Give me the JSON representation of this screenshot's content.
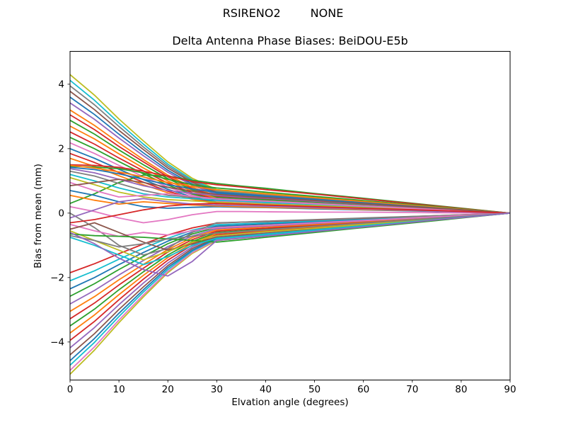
{
  "chart_data": {
    "type": "line",
    "suptitle_left": "RSIRENO2",
    "suptitle_right": "NONE",
    "title": "Delta Antenna Phase Biases: BeiDOU-E5b",
    "xlabel": "Elvation angle (degrees)",
    "ylabel": "Bias from mean (mm)",
    "xlim": [
      0,
      90
    ],
    "ylim": [
      -5.18,
      5.02
    ],
    "xticks": [
      {
        "v": 0,
        "label": "0"
      },
      {
        "v": 10,
        "label": "10"
      },
      {
        "v": 20,
        "label": "20"
      },
      {
        "v": 30,
        "label": "30"
      },
      {
        "v": 40,
        "label": "40"
      },
      {
        "v": 50,
        "label": "50"
      },
      {
        "v": 60,
        "label": "60"
      },
      {
        "v": 70,
        "label": "70"
      },
      {
        "v": 80,
        "label": "80"
      },
      {
        "v": 90,
        "label": "90"
      }
    ],
    "yticks": [
      {
        "v": 4,
        "label": "4"
      },
      {
        "v": 2,
        "label": "2"
      },
      {
        "v": 0,
        "label": "0"
      },
      {
        "v": -2,
        "label": "−2"
      },
      {
        "v": -4,
        "label": "−4"
      }
    ],
    "grid": false,
    "legend": "none",
    "line_width": 1.8,
    "x": [
      0,
      5,
      10,
      15,
      20,
      25,
      30,
      35,
      40,
      50,
      60,
      75,
      90
    ],
    "series": [
      {
        "color": "#bcbd22",
        "values": [
          4.3,
          3.66,
          2.92,
          2.24,
          1.59,
          1.08,
          0.73,
          0.67,
          0.61,
          0.49,
          0.37,
          0.18,
          0
        ]
      },
      {
        "color": "#17becf",
        "values": [
          4.12,
          3.5,
          2.8,
          2.14,
          1.52,
          1.03,
          0.7,
          0.64,
          0.58,
          0.47,
          0.35,
          0.18,
          0
        ]
      },
      {
        "color": "#7f7f7f",
        "values": [
          3.95,
          3.36,
          2.69,
          2.05,
          1.46,
          0.99,
          0.67,
          0.61,
          0.56,
          0.45,
          0.34,
          0.17,
          0
        ]
      },
      {
        "color": "#8c564b",
        "values": [
          3.78,
          3.21,
          2.57,
          1.97,
          1.4,
          0.95,
          0.64,
          0.59,
          0.53,
          0.43,
          0.32,
          0.16,
          0
        ]
      },
      {
        "color": "#1f77b4",
        "values": [
          3.6,
          3.06,
          2.45,
          1.87,
          1.33,
          0.9,
          0.61,
          0.56,
          0.51,
          0.41,
          0.31,
          0.15,
          0
        ]
      },
      {
        "color": "#9467bd",
        "values": [
          3.42,
          2.91,
          2.33,
          1.78,
          1.27,
          0.86,
          0.58,
          0.53,
          0.48,
          0.39,
          0.29,
          0.15,
          0
        ]
      },
      {
        "color": "#ff7f0e",
        "values": [
          3.2,
          2.72,
          2.18,
          1.66,
          1.18,
          0.8,
          0.54,
          0.5,
          0.45,
          0.36,
          0.27,
          0.14,
          0
        ]
      },
      {
        "color": "#d62728",
        "values": [
          3.05,
          2.59,
          2.07,
          1.59,
          1.13,
          0.76,
          0.52,
          0.48,
          0.43,
          0.35,
          0.26,
          0.13,
          0
        ]
      },
      {
        "color": "#2ca02c",
        "values": [
          2.88,
          2.45,
          1.96,
          1.5,
          1.07,
          0.72,
          0.49,
          0.45,
          0.41,
          0.33,
          0.25,
          0.12,
          0
        ]
      },
      {
        "color": "#ff7f0e",
        "values": [
          2.7,
          2.3,
          1.84,
          1.4,
          1.0,
          0.68,
          0.46,
          0.42,
          0.38,
          0.31,
          0.23,
          0.12,
          0
        ]
      },
      {
        "color": "#d62728",
        "values": [
          2.52,
          2.14,
          1.71,
          1.31,
          0.93,
          0.63,
          0.43,
          0.39,
          0.36,
          0.29,
          0.22,
          0.11,
          0
        ]
      },
      {
        "color": "#2ca02c",
        "values": [
          2.35,
          2.0,
          1.6,
          1.22,
          0.87,
          0.59,
          0.4,
          0.37,
          0.33,
          0.27,
          0.2,
          0.1,
          0
        ]
      },
      {
        "color": "#e377c2",
        "values": [
          2.18,
          1.85,
          1.48,
          1.13,
          0.81,
          0.55,
          0.37,
          0.34,
          0.31,
          0.25,
          0.19,
          0.09,
          0
        ]
      },
      {
        "color": "#1f77b4",
        "values": [
          2.0,
          1.7,
          1.36,
          1.04,
          0.74,
          0.5,
          0.34,
          0.31,
          0.28,
          0.23,
          0.17,
          0.09,
          0
        ]
      },
      {
        "color": "#d62728",
        "values": [
          1.85,
          1.57,
          1.26,
          0.96,
          0.68,
          0.46,
          0.31,
          0.28,
          0.26,
          0.21,
          0.16,
          0.08,
          0
        ]
      },
      {
        "color": "#ff7f0e",
        "values": [
          1.7,
          1.45,
          1.16,
          0.88,
          0.63,
          0.43,
          0.29,
          0.27,
          0.24,
          0.19,
          0.15,
          0.07,
          0
        ]
      },
      {
        "color": "#bcbd22",
        "values": [
          -5.0,
          -4.25,
          -3.4,
          -2.6,
          -1.85,
          -1.25,
          -0.85,
          -0.78,
          -0.71,
          -0.57,
          -0.43,
          -0.21,
          0
        ]
      },
      {
        "color": "#e377c2",
        "values": [
          -4.88,
          -4.15,
          -3.32,
          -2.54,
          -1.81,
          -1.22,
          -0.83,
          -0.76,
          -0.69,
          -0.55,
          -0.42,
          -0.21,
          0
        ]
      },
      {
        "color": "#17becf",
        "values": [
          -4.72,
          -4.01,
          -3.21,
          -2.45,
          -1.75,
          -1.18,
          -0.8,
          -0.73,
          -0.67,
          -0.53,
          -0.4,
          -0.2,
          0
        ]
      },
      {
        "color": "#1f77b4",
        "values": [
          -4.58,
          -3.89,
          -3.11,
          -2.38,
          -1.69,
          -1.15,
          -0.78,
          -0.72,
          -0.65,
          -0.52,
          -0.39,
          -0.2,
          0
        ]
      },
      {
        "color": "#8c564b",
        "values": [
          -4.4,
          -3.74,
          -2.99,
          -2.29,
          -1.63,
          -1.1,
          -0.75,
          -0.69,
          -0.63,
          -0.5,
          -0.38,
          -0.19,
          0
        ]
      },
      {
        "color": "#9467bd",
        "values": [
          -4.18,
          -3.55,
          -2.84,
          -2.17,
          -1.55,
          -1.05,
          -0.71,
          -0.65,
          -0.59,
          -0.47,
          -0.36,
          -0.18,
          0
        ]
      },
      {
        "color": "#d62728",
        "values": [
          -3.95,
          -3.36,
          -2.69,
          -2.05,
          -1.46,
          -0.99,
          -0.67,
          -0.61,
          -0.56,
          -0.45,
          -0.34,
          -0.17,
          0
        ]
      },
      {
        "color": "#ff7f0e",
        "values": [
          -3.72,
          -3.16,
          -2.53,
          -1.93,
          -1.38,
          -0.93,
          -0.63,
          -0.58,
          -0.53,
          -0.42,
          -0.32,
          -0.16,
          0
        ]
      },
      {
        "color": "#2ca02c",
        "values": [
          -3.5,
          -2.98,
          -2.38,
          -1.82,
          -1.3,
          -0.88,
          -0.6,
          -0.55,
          -0.5,
          -0.4,
          -0.3,
          -0.15,
          0
        ]
      },
      {
        "color": "#d62728",
        "values": [
          -3.28,
          -2.79,
          -2.23,
          -1.71,
          -1.21,
          -0.82,
          -0.56,
          -0.51,
          -0.47,
          -0.37,
          -0.28,
          -0.14,
          0
        ]
      },
      {
        "color": "#ff7f0e",
        "values": [
          -3.05,
          -2.59,
          -2.07,
          -1.59,
          -1.13,
          -0.76,
          -0.52,
          -0.48,
          -0.43,
          -0.35,
          -0.26,
          -0.13,
          0
        ]
      },
      {
        "color": "#9467bd",
        "values": [
          -2.82,
          -2.4,
          -1.92,
          -1.47,
          -1.04,
          -0.71,
          -0.48,
          -0.44,
          -0.4,
          -0.32,
          -0.24,
          -0.12,
          0
        ]
      },
      {
        "color": "#2ca02c",
        "values": [
          -2.58,
          -2.19,
          -1.75,
          -1.34,
          -0.95,
          -0.65,
          -0.44,
          -0.4,
          -0.37,
          -0.29,
          -0.22,
          -0.11,
          0
        ]
      },
      {
        "color": "#1f77b4",
        "values": [
          -2.35,
          -2.0,
          -1.6,
          -1.22,
          -0.87,
          -0.59,
          -0.4,
          -0.37,
          -0.33,
          -0.27,
          -0.2,
          -0.1,
          0
        ]
      },
      {
        "color": "#17becf",
        "values": [
          -2.1,
          -1.79,
          -1.43,
          -1.09,
          -0.78,
          -0.53,
          -0.36,
          -0.33,
          -0.3,
          -0.24,
          -0.18,
          -0.09,
          0
        ]
      },
      {
        "color": "#d62728",
        "values": [
          -1.85,
          -1.57,
          -1.26,
          -0.96,
          -0.68,
          -0.46,
          -0.31,
          -0.28,
          -0.26,
          -0.21,
          -0.16,
          -0.08,
          0
        ]
      },
      {
        "color": "#2ca02c",
        "values": [
          0.3,
          0.6,
          0.95,
          1.18,
          1.15,
          1.02,
          0.92,
          0.84,
          0.77,
          0.61,
          0.46,
          0.23,
          0
        ]
      },
      {
        "color": "#d62728",
        "values": [
          1.5,
          1.48,
          1.42,
          1.3,
          1.15,
          0.98,
          0.88,
          0.81,
          0.73,
          0.59,
          0.44,
          0.22,
          0
        ]
      },
      {
        "color": "#2ca02c",
        "values": [
          1.45,
          1.43,
          1.38,
          1.25,
          1.05,
          0.88,
          0.78,
          0.72,
          0.65,
          0.52,
          0.39,
          0.2,
          0
        ]
      },
      {
        "color": "#ff7f0e",
        "values": [
          1.48,
          1.4,
          1.28,
          1.12,
          0.95,
          0.83,
          0.72,
          0.66,
          0.6,
          0.48,
          0.36,
          0.18,
          0
        ]
      },
      {
        "color": "#1f77b4",
        "values": [
          1.42,
          1.35,
          1.22,
          1.05,
          0.88,
          0.75,
          0.64,
          0.59,
          0.53,
          0.43,
          0.32,
          0.16,
          0
        ]
      },
      {
        "color": "#9467bd",
        "values": [
          1.38,
          1.25,
          1.05,
          0.85,
          0.7,
          0.62,
          0.55,
          0.5,
          0.46,
          0.37,
          0.28,
          0.14,
          0
        ]
      },
      {
        "color": "#7f7f7f",
        "values": [
          1.3,
          1.15,
          0.92,
          0.7,
          0.55,
          0.5,
          0.46,
          0.42,
          0.38,
          0.31,
          0.23,
          0.12,
          0
        ]
      },
      {
        "color": "#17becf",
        "values": [
          1.2,
          1.0,
          0.78,
          0.6,
          0.5,
          0.45,
          0.4,
          0.37,
          0.33,
          0.27,
          0.2,
          0.1,
          0
        ]
      },
      {
        "color": "#bcbd22",
        "values": [
          1.1,
          0.88,
          0.65,
          0.5,
          0.42,
          0.38,
          0.34,
          0.31,
          0.28,
          0.23,
          0.17,
          0.09,
          0
        ]
      },
      {
        "color": "#e377c2",
        "values": [
          0.95,
          0.7,
          0.5,
          0.55,
          0.6,
          0.52,
          0.44,
          0.4,
          0.37,
          0.29,
          0.22,
          0.11,
          0
        ]
      },
      {
        "color": "#8c564b",
        "values": [
          0.85,
          0.95,
          1.05,
          0.95,
          0.8,
          0.68,
          0.58,
          0.53,
          0.48,
          0.39,
          0.29,
          0.15,
          0
        ]
      },
      {
        "color": "#1f77b4",
        "values": [
          0.7,
          0.55,
          0.35,
          0.2,
          0.15,
          0.18,
          0.2,
          0.18,
          0.17,
          0.13,
          0.1,
          0.05,
          0
        ]
      },
      {
        "color": "#ff7f0e",
        "values": [
          0.55,
          0.4,
          0.28,
          0.35,
          0.3,
          0.25,
          0.22,
          0.2,
          0.18,
          0.15,
          0.11,
          0.06,
          0
        ]
      },
      {
        "color": "#e377c2",
        "values": [
          0.2,
          0.05,
          -0.15,
          -0.3,
          -0.2,
          -0.05,
          0.05,
          0.05,
          0.04,
          0.03,
          0.03,
          0.01,
          0
        ]
      },
      {
        "color": "#7f7f7f",
        "values": [
          0.0,
          -0.45,
          -1.0,
          -1.3,
          -1.1,
          -0.6,
          -0.3,
          -0.28,
          -0.25,
          -0.2,
          -0.15,
          -0.08,
          0
        ]
      },
      {
        "color": "#9467bd",
        "values": [
          -0.15,
          0.1,
          0.35,
          0.45,
          0.35,
          0.28,
          0.25,
          0.23,
          0.21,
          0.17,
          0.13,
          0.06,
          0
        ]
      },
      {
        "color": "#d62728",
        "values": [
          -0.3,
          -0.2,
          -0.05,
          0.1,
          0.22,
          0.28,
          0.3,
          0.28,
          0.25,
          0.2,
          0.15,
          0.08,
          0
        ]
      },
      {
        "color": "#e377c2",
        "values": [
          -0.35,
          -0.55,
          -0.72,
          -0.6,
          -0.68,
          -0.55,
          -0.45,
          -0.41,
          -0.38,
          -0.3,
          -0.23,
          -0.11,
          0
        ]
      },
      {
        "color": "#8c564b",
        "values": [
          -0.5,
          -0.3,
          -0.6,
          -0.9,
          -1.15,
          -0.95,
          -0.75,
          -0.69,
          -0.63,
          -0.5,
          -0.38,
          -0.19,
          0
        ]
      },
      {
        "color": "#bcbd22",
        "values": [
          -0.55,
          -0.85,
          -1.15,
          -1.45,
          -1.2,
          -0.9,
          -0.7,
          -0.64,
          -0.58,
          -0.47,
          -0.35,
          -0.18,
          0
        ]
      },
      {
        "color": "#2ca02c",
        "values": [
          -0.65,
          -0.7,
          -0.72,
          -0.75,
          -0.8,
          -0.85,
          -0.9,
          -0.83,
          -0.75,
          -0.6,
          -0.45,
          -0.23,
          0
        ]
      },
      {
        "color": "#7f7f7f",
        "values": [
          -0.7,
          -0.85,
          -1.05,
          -0.95,
          -0.8,
          -0.72,
          -0.62,
          -0.57,
          -0.52,
          -0.41,
          -0.31,
          -0.16,
          0
        ]
      },
      {
        "color": "#17becf",
        "values": [
          -0.75,
          -1.0,
          -1.3,
          -1.6,
          -1.35,
          -1.0,
          -0.78,
          -0.72,
          -0.65,
          -0.52,
          -0.39,
          -0.2,
          0
        ]
      },
      {
        "color": "#9467bd",
        "values": [
          -0.6,
          -0.95,
          -1.4,
          -1.75,
          -1.95,
          -1.5,
          -0.85,
          -0.78,
          -0.71,
          -0.57,
          -0.43,
          -0.21,
          0
        ]
      }
    ]
  }
}
